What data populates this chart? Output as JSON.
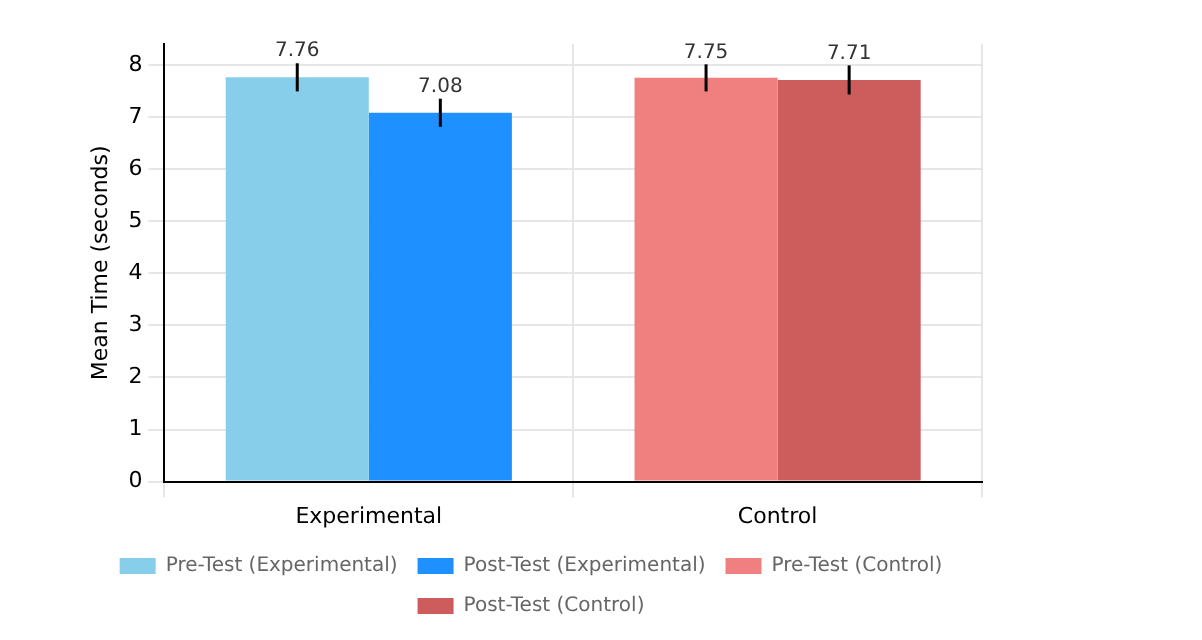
{
  "chart_data": {
    "type": "bar",
    "ylabel": "Mean Time (seconds)",
    "categories": [
      "Experimental",
      "Control"
    ],
    "series": [
      {
        "name": "Pre-Test (Experimental)",
        "color": "#87ceeb",
        "values": [
          7.76,
          null
        ],
        "errors": [
          0.27,
          null
        ]
      },
      {
        "name": "Post-Test (Experimental)",
        "color": "#1e90ff",
        "values": [
          7.08,
          null
        ],
        "errors": [
          0.27,
          null
        ]
      },
      {
        "name": "Pre-Test (Control)",
        "color": "#f08080",
        "values": [
          null,
          7.75
        ],
        "errors": [
          null,
          0.26
        ]
      },
      {
        "name": "Post-Test (Control)",
        "color": "#cd5c5c",
        "values": [
          null,
          7.71
        ],
        "errors": [
          null,
          0.28
        ]
      }
    ],
    "ylim": [
      0,
      8.4
    ],
    "yticks": [
      0,
      1,
      2,
      3,
      4,
      5,
      6,
      7,
      8
    ],
    "grid": true,
    "legend": "bottom",
    "data_labels": true
  }
}
